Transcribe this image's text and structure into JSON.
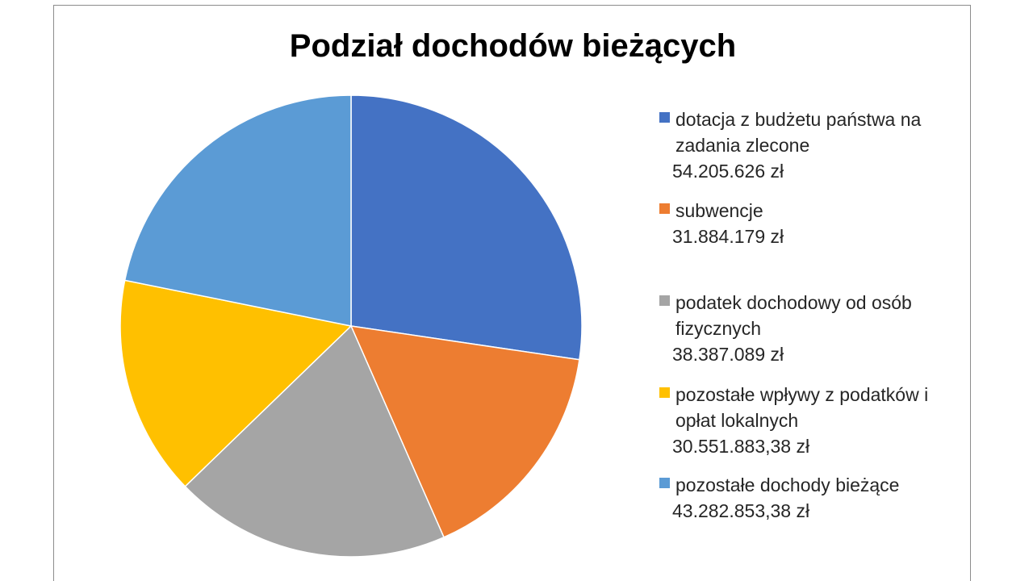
{
  "chart_data": {
    "type": "pie",
    "title": "Podział dochodów bieżących",
    "legend_position": "right",
    "start_angle_deg": 0,
    "direction": "clockwise",
    "slices": [
      {
        "label": "dotacja z budżetu państwa na\nzadania zlecone",
        "value": 54205626,
        "value_label": " 54.205.626 zł",
        "color": "#4472C4"
      },
      {
        "label": "subwencje",
        "value": 31884179,
        "value_label": "31.884.179 zł",
        "color": "#ED7D31"
      },
      {
        "label": "podatek dochodowy od osób\nfizycznych",
        "value": 38387089,
        "value_label": " 38.387.089 zł",
        "color": "#A5A5A5"
      },
      {
        "label": "pozostałe wpływy z podatków i\nopłat lokalnych",
        "value": 30551883.38,
        "value_label": " 30.551.883,38 zł",
        "color": "#FFC000"
      },
      {
        "label": "pozostałe dochody bieżące",
        "value": 43282853.38,
        "value_label": "43.282.853,38 zł",
        "color": "#5B9BD5"
      }
    ]
  }
}
